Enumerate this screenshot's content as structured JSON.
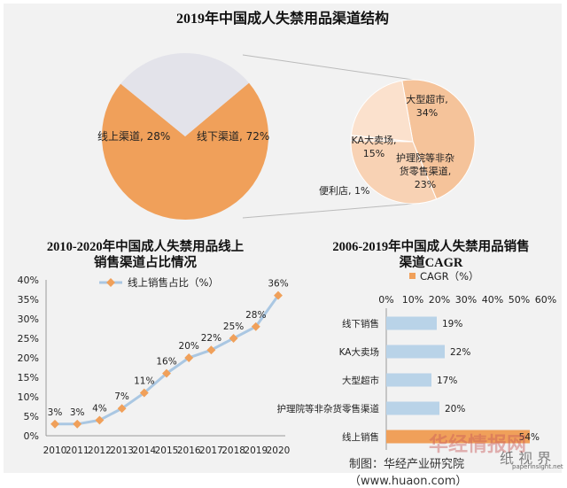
{
  "chart_data": [
    {
      "type": "pie",
      "title": "2019年中国成人失禁用品渠道结构",
      "slices": [
        {
          "label": "线下渠道, 72%",
          "value": 72,
          "color": "#f0a05a"
        },
        {
          "label": "线上渠道, 28%",
          "value": 28,
          "color": "#e3e3ea"
        }
      ]
    },
    {
      "type": "pie",
      "title": "",
      "slices": [
        {
          "label_line1": "大型超市,",
          "label_line2": "34%",
          "value": 34,
          "color": "#f5c39a"
        },
        {
          "label_line1": "护理院等非杂",
          "label_line2": "货零售渠道,",
          "label_line3": "23%",
          "value": 23,
          "color": "#f8d2b4"
        },
        {
          "label_line1": "便利店, 1%",
          "value": 1,
          "color": "#fce6d6"
        },
        {
          "label_line1": "KA大卖场,",
          "label_line2": "15%",
          "value": 15,
          "color": "#fbe1cd"
        }
      ]
    },
    {
      "type": "line",
      "title_line1": "2010-2020年中国成人失禁用品线上",
      "title_line2": "销售渠道占比情况",
      "legend": "线上销售占比（%）",
      "x": [
        "2010",
        "2011",
        "2012",
        "2013",
        "2014",
        "2015",
        "2016",
        "2017",
        "2018",
        "2019",
        "2020"
      ],
      "values": [
        3,
        3,
        4,
        7,
        11,
        16,
        20,
        22,
        25,
        28,
        36
      ],
      "value_labels": [
        "3%",
        "3%",
        "4%",
        "7%",
        "11%",
        "16%",
        "20%",
        "22%",
        "25%",
        "28%",
        "36%"
      ],
      "y_ticks": [
        "0%",
        "5%",
        "10%",
        "15%",
        "20%",
        "25%",
        "30%",
        "35%",
        "40%"
      ],
      "ylim": [
        0,
        40
      ],
      "grid": false,
      "line_color": "#aac7e2",
      "marker_color": "#f0a05a"
    },
    {
      "type": "bar",
      "orientation": "horizontal",
      "title_line1": "2006-2019年中国成人失禁用品销售",
      "title_line2": "渠道CAGR",
      "legend": "CAGR（%）",
      "categories": [
        "线下销售",
        "KA大卖场",
        "大型超市",
        "护理院等非杂货零售渠道",
        "线上销售"
      ],
      "values": [
        19,
        22,
        17,
        20,
        54
      ],
      "value_labels": [
        "19%",
        "22%",
        "17%",
        "20%",
        "54%"
      ],
      "x_ticks": [
        "0%",
        "10%",
        "20%",
        "30%",
        "40%",
        "50%",
        "60%"
      ],
      "xlim": [
        0,
        60
      ],
      "grid": false,
      "bar_color": "#b9d3e8",
      "highlight_color": "#f0a05a"
    }
  ],
  "credit": "制图：华经产业研究院（www.huaon.com）",
  "watermark": {
    "text1": "华经情报网",
    "text2": "纸 视 界",
    "site": "paperinsight.net"
  }
}
